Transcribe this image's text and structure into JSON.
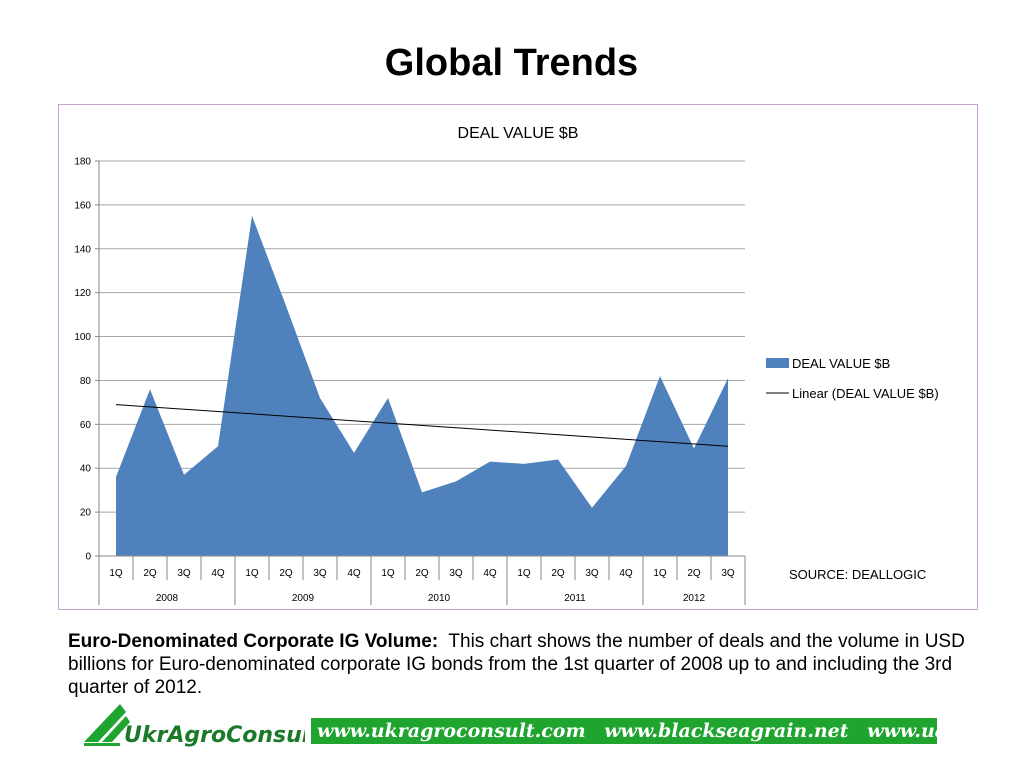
{
  "slide": {
    "title": "Global Trends",
    "description_bold": "Euro-Denominated Corporate IG Volume:",
    "description_text": "This chart shows the number of deals and the volume in USD billions for Euro-denominated corporate IG bonds from the 1st quarter of 2008 up to and including the 3rd quarter of 2012."
  },
  "footer": {
    "logo_text": "UkrAgroConsult",
    "websites": [
      "www.ukragroconsult.com",
      "www.blackseagrain.net",
      "www.uaindex.net"
    ],
    "banner_color": "#1fa52f"
  },
  "chart_data": {
    "type": "area",
    "title": "DEAL VALUE $B",
    "source_note": "SOURCE:  DEALLOGIC",
    "categories": [
      "1Q",
      "2Q",
      "3Q",
      "4Q",
      "1Q",
      "2Q",
      "3Q",
      "4Q",
      "1Q",
      "2Q",
      "3Q",
      "4Q",
      "1Q",
      "2Q",
      "3Q",
      "4Q",
      "1Q",
      "2Q",
      "3Q"
    ],
    "year_groups": [
      {
        "label": "2008",
        "span": 4
      },
      {
        "label": "2009",
        "span": 4
      },
      {
        "label": "2010",
        "span": 4
      },
      {
        "label": "2011",
        "span": 4
      },
      {
        "label": "2012",
        "span": 3
      }
    ],
    "series": [
      {
        "name": "DEAL VALUE $B",
        "color": "#4f81bd",
        "values": [
          36,
          76,
          37,
          50,
          155,
          114,
          72,
          47,
          72,
          29,
          34,
          43,
          42,
          44,
          22,
          41,
          82,
          49,
          81
        ]
      }
    ],
    "trendline": {
      "name": "Linear (DEAL VALUE $B)",
      "type": "linear",
      "start": 69,
      "end": 50,
      "color": "#000000"
    },
    "ylim": [
      0,
      180
    ],
    "yticks": [
      0,
      20,
      40,
      60,
      80,
      100,
      120,
      140,
      160,
      180
    ],
    "grid": true,
    "legend_position": "right"
  }
}
